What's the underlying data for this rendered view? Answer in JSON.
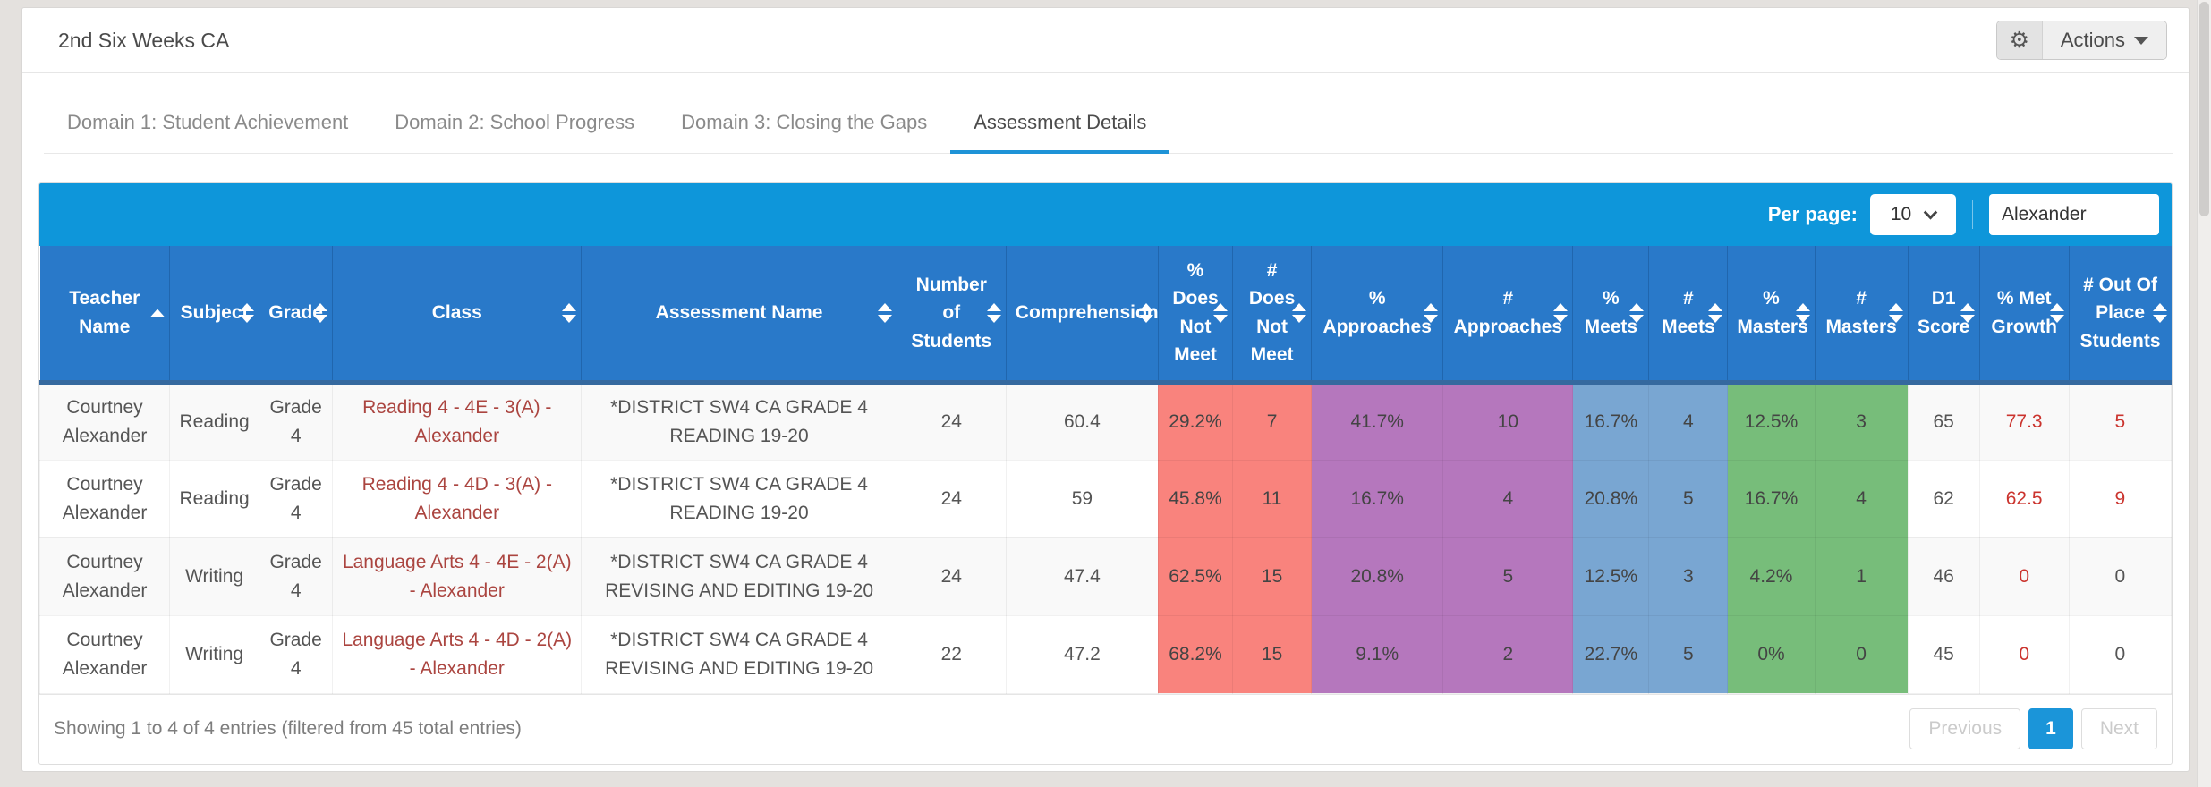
{
  "header": {
    "title": "2nd Six Weeks CA",
    "actions_label": "Actions"
  },
  "tabs": [
    {
      "label": "Domain 1: Student Achievement",
      "active": false
    },
    {
      "label": "Domain 2: School Progress",
      "active": false
    },
    {
      "label": "Domain 3: Closing the Gaps",
      "active": false
    },
    {
      "label": "Assessment Details",
      "active": true
    }
  ],
  "toolbar": {
    "per_page_label": "Per page:",
    "per_page_value": "10",
    "search_value": "Alexander"
  },
  "colors": {
    "toolbar_blue": "#0e96da",
    "header_blue": "#2979c9",
    "band_does_not_meet": "#f9837d",
    "band_approaches": "#b577bd",
    "band_meets": "#79a6d2",
    "band_masters": "#77bd7a",
    "link_red": "#ab4540",
    "alert_red": "#cb342e"
  },
  "table": {
    "columns": [
      {
        "key": "teacher",
        "label": "Teacher Name",
        "sort": "asc",
        "width": 6.06
      },
      {
        "key": "subject",
        "label": "Subject",
        "sort": "both",
        "width": 4.18
      },
      {
        "key": "grade",
        "label": "Grade",
        "sort": "both",
        "width": 3.43
      },
      {
        "key": "class",
        "label": "Class",
        "sort": "both",
        "width": 11.62,
        "cell": "link"
      },
      {
        "key": "assessment",
        "label": "Assessment Name",
        "sort": "both",
        "width": 14.72
      },
      {
        "key": "num_students",
        "label": "Number of Students",
        "sort": "both",
        "width": 5.1
      },
      {
        "key": "comprehension",
        "label": "Comprehension",
        "sort": "both",
        "width": 7.11
      },
      {
        "key": "pct_dnm",
        "label": "% Does Not Meet",
        "sort": "both",
        "width": 3.47,
        "band": "band_does_not_meet"
      },
      {
        "key": "num_dnm",
        "label": "# Does Not Meet",
        "sort": "both",
        "width": 3.68,
        "band": "band_does_not_meet"
      },
      {
        "key": "pct_app",
        "label": "% Approaches",
        "sort": "both",
        "width": 6.15,
        "band": "band_approaches"
      },
      {
        "key": "num_app",
        "label": "# Approaches",
        "sort": "both",
        "width": 6.06,
        "band": "band_approaches"
      },
      {
        "key": "pct_meets",
        "label": "% Meets",
        "sort": "both",
        "width": 3.55,
        "band": "band_meets"
      },
      {
        "key": "num_meets",
        "label": "# Meets",
        "sort": "both",
        "width": 3.68,
        "band": "band_meets"
      },
      {
        "key": "pct_masters",
        "label": "% Masters",
        "sort": "both",
        "width": 4.06,
        "band": "band_masters"
      },
      {
        "key": "num_masters",
        "label": "# Masters",
        "sort": "both",
        "width": 4.35,
        "band": "band_masters"
      },
      {
        "key": "d1_score",
        "label": "D1 Score",
        "sort": "both",
        "width": 3.34
      },
      {
        "key": "met_growth",
        "label": "% Met Growth",
        "sort": "both",
        "width": 4.18,
        "highlight": "always"
      },
      {
        "key": "out_of_place",
        "label": "# Out Of Place Students",
        "sort": "both",
        "width": 4.77,
        "highlight": "nonzero"
      }
    ],
    "rows": [
      {
        "teacher": "Courtney Alexander",
        "subject": "Reading",
        "grade": "Grade 4",
        "class": "Reading 4 - 4E - 3(A) - Alexander",
        "assessment": "*DISTRICT SW4 CA GRADE 4 READING 19-20",
        "num_students": "24",
        "comprehension": "60.4",
        "pct_dnm": "29.2%",
        "num_dnm": "7",
        "pct_app": "41.7%",
        "num_app": "10",
        "pct_meets": "16.7%",
        "num_meets": "4",
        "pct_masters": "12.5%",
        "num_masters": "3",
        "d1_score": "65",
        "met_growth": "77.3",
        "out_of_place": "5"
      },
      {
        "teacher": "Courtney Alexander",
        "subject": "Reading",
        "grade": "Grade 4",
        "class": "Reading 4 - 4D - 3(A) - Alexander",
        "assessment": "*DISTRICT SW4 CA GRADE 4 READING 19-20",
        "num_students": "24",
        "comprehension": "59",
        "pct_dnm": "45.8%",
        "num_dnm": "11",
        "pct_app": "16.7%",
        "num_app": "4",
        "pct_meets": "20.8%",
        "num_meets": "5",
        "pct_masters": "16.7%",
        "num_masters": "4",
        "d1_score": "62",
        "met_growth": "62.5",
        "out_of_place": "9"
      },
      {
        "teacher": "Courtney Alexander",
        "subject": "Writing",
        "grade": "Grade 4",
        "class": "Language Arts 4 - 4E - 2(A) - Alexander",
        "assessment": "*DISTRICT SW4 CA GRADE 4 REVISING AND EDITING 19-20",
        "num_students": "24",
        "comprehension": "47.4",
        "pct_dnm": "62.5%",
        "num_dnm": "15",
        "pct_app": "20.8%",
        "num_app": "5",
        "pct_meets": "12.5%",
        "num_meets": "3",
        "pct_masters": "4.2%",
        "num_masters": "1",
        "d1_score": "46",
        "met_growth": "0",
        "out_of_place": "0"
      },
      {
        "teacher": "Courtney Alexander",
        "subject": "Writing",
        "grade": "Grade 4",
        "class": "Language Arts 4 - 4D - 2(A) - Alexander",
        "assessment": "*DISTRICT SW4 CA GRADE 4 REVISING AND EDITING 19-20",
        "num_students": "22",
        "comprehension": "47.2",
        "pct_dnm": "68.2%",
        "num_dnm": "15",
        "pct_app": "9.1%",
        "num_app": "2",
        "pct_meets": "22.7%",
        "num_meets": "5",
        "pct_masters": "0%",
        "num_masters": "0",
        "d1_score": "45",
        "met_growth": "0",
        "out_of_place": "0"
      }
    ]
  },
  "footer": {
    "summary": "Showing 1 to 4 of 4 entries (filtered from 45 total entries)",
    "previous_label": "Previous",
    "current_page": "1",
    "next_label": "Next"
  }
}
